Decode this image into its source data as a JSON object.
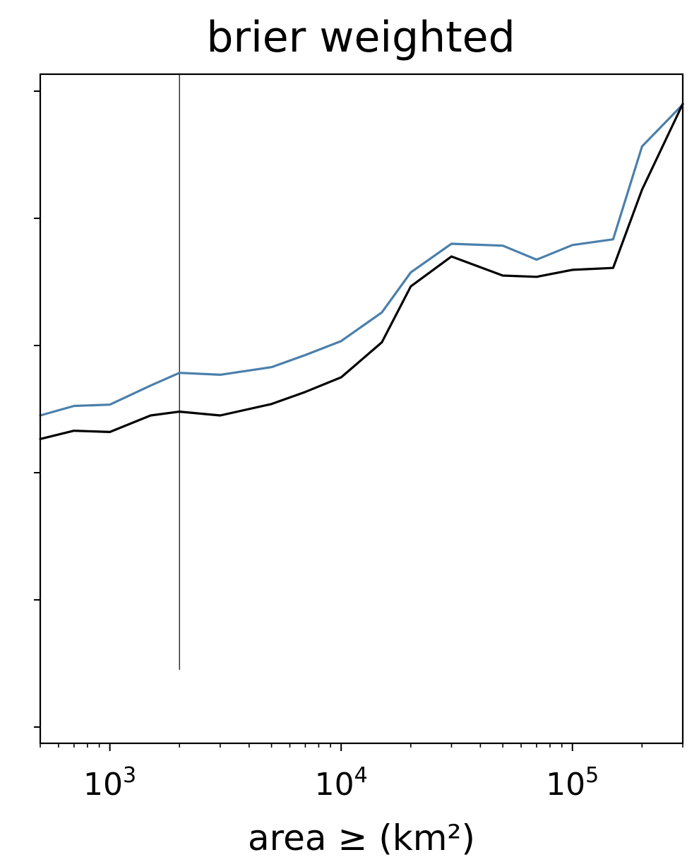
{
  "chart_data": {
    "type": "line",
    "title": "brier weighted",
    "xlabel": "area ≥ (km²)",
    "ylabel": "",
    "x_scale": "log",
    "xlim": [
      500,
      300000
    ],
    "ylim": [
      0,
      1
    ],
    "x_ticks": [
      {
        "value": 1000,
        "base": "10",
        "exp": "3"
      },
      {
        "value": 10000,
        "base": "10",
        "exp": "4"
      },
      {
        "value": 100000,
        "base": "10",
        "exp": "5"
      }
    ],
    "y_tick_count": 6,
    "grid": false,
    "reference_line": {
      "x": 2000
    },
    "series": [
      {
        "color": "#4a7fab",
        "x": [
          500,
          700,
          1000,
          1500,
          2000,
          3000,
          5000,
          7000,
          10000,
          15000,
          20000,
          30000,
          50000,
          70000,
          100000,
          150000,
          200000,
          300000
        ],
        "y": [
          0.49,
          0.505,
          0.507,
          0.537,
          0.557,
          0.554,
          0.566,
          0.585,
          0.607,
          0.652,
          0.715,
          0.76,
          0.757,
          0.735,
          0.758,
          0.767,
          0.913,
          0.979
        ]
      },
      {
        "color": "#000000",
        "x": [
          500,
          700,
          1000,
          1500,
          2000,
          3000,
          5000,
          7000,
          10000,
          15000,
          20000,
          30000,
          50000,
          70000,
          100000,
          150000,
          200000,
          300000
        ],
        "y": [
          0.453,
          0.466,
          0.464,
          0.49,
          0.496,
          0.49,
          0.508,
          0.527,
          0.55,
          0.605,
          0.693,
          0.74,
          0.71,
          0.708,
          0.719,
          0.722,
          0.845,
          0.98
        ]
      }
    ]
  }
}
